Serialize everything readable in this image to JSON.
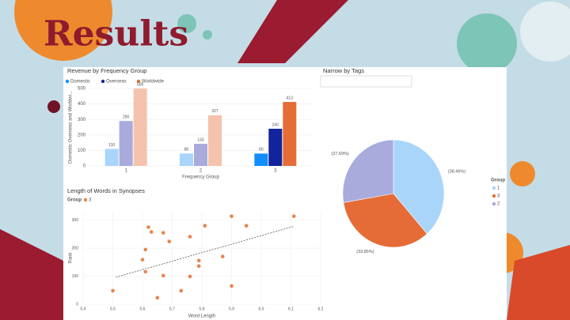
{
  "title": "Results",
  "chart_data": [
    {
      "type": "bar",
      "title": "Revenue by Frequency Group",
      "y_label": "Domestic Overseas and Worldwi...",
      "x_label": "Frequency Group",
      "categories": [
        "1",
        "2",
        "3"
      ],
      "series": [
        {
          "name": "Domestic",
          "colors": [
            "#a9d5fb",
            "#a9d5fb",
            "#118dff"
          ],
          "values": [
            110,
            80,
            80
          ]
        },
        {
          "name": "Overseas",
          "colors": [
            "#a8abdc",
            "#a8abdc",
            "#12239e"
          ],
          "values": [
            290,
            143,
            240
          ]
        },
        {
          "name": "Worldwide",
          "colors": [
            "#f5c3ad",
            "#f5c3ad",
            "#e66c37"
          ],
          "values": [
            500,
            327,
            413
          ]
        }
      ],
      "ylim": [
        0,
        500
      ],
      "yticks": [
        0,
        100,
        200,
        300,
        400,
        500
      ],
      "grid": true
    },
    {
      "type": "scatter",
      "title": "Length of Words in Synopses",
      "legend_title": "Group",
      "x_label": "Word Length",
      "y_label": "Rank",
      "series": [
        {
          "name": "3",
          "color": "#e8834a",
          "x": [
            5.9,
            6.11,
            5.81,
            5.95,
            5.62,
            5.63,
            5.67,
            5.76,
            5.69,
            5.61,
            5.87,
            5.6,
            5.79,
            5.79,
            5.61,
            5.67,
            5.76,
            5.9,
            5.5,
            5.73,
            5.65
          ],
          "values": [
            314,
            314,
            280,
            280,
            275,
            258,
            255,
            241,
            224,
            195,
            170,
            159,
            156,
            136,
            116,
            102,
            99,
            65,
            48,
            48,
            23
          ]
        }
      ],
      "trend": {
        "x": [
          5.51,
          6.11
        ],
        "values": [
          96,
          278
        ]
      },
      "xlim": [
        5.4,
        6.2
      ],
      "xticks": [
        5.4,
        5.5,
        5.6,
        5.7,
        5.8,
        5.9,
        {
          "value": 6,
          "label": "6.0"
        },
        6.1,
        6.2
      ],
      "ylim": [
        0,
        330
      ],
      "yticks": [
        0,
        100,
        200,
        300
      ]
    },
    {
      "type": "pie",
      "title": "Narrow by Tags",
      "legend_title": "Group",
      "categories": [
        "1",
        "3",
        "2"
      ],
      "values": [
        38.46,
        33.85,
        27.69
      ],
      "value_labels": [
        "(38.46%)",
        "(33.85%)",
        "(27.69%)"
      ],
      "colors": [
        "#a9d5fb",
        "#e66c37",
        "#a8abdc"
      ]
    }
  ]
}
